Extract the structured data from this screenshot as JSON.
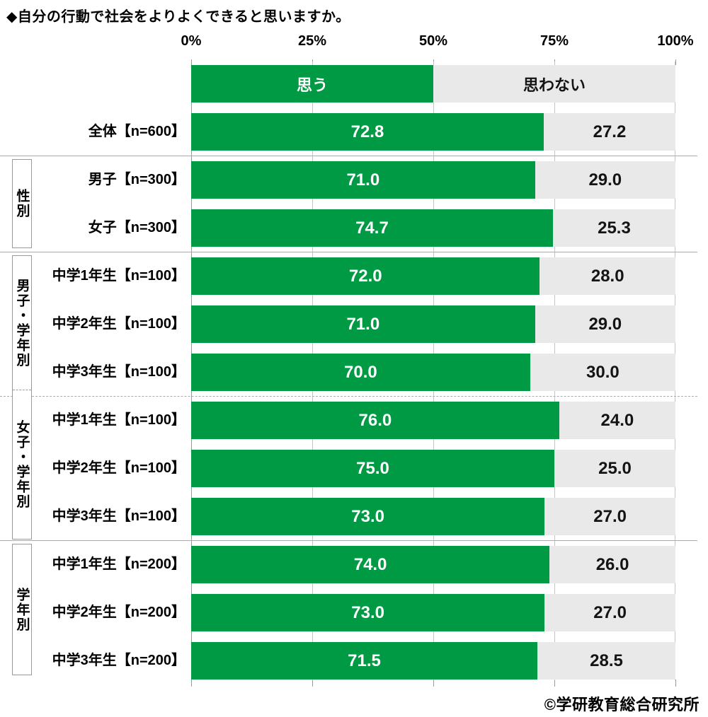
{
  "title": "◆自分の行動で社会をよりよくできると思いますか。",
  "axis_ticks": [
    "0%",
    "25%",
    "50%",
    "75%",
    "100%"
  ],
  "legend": {
    "yes": "思う",
    "no": "思わない"
  },
  "colors": {
    "yes_green": "#009944",
    "no_gray": "#E9E9E9"
  },
  "groups": {
    "gender": "性別",
    "boys_by_grade": "男子・学年別",
    "girls_by_grade": "女子・学年別",
    "by_grade": "学年別"
  },
  "rows": [
    {
      "label": "全体【n=600】",
      "yes": "72.8",
      "no": "27.2",
      "yes_w": 72.8,
      "no_w": 27.2
    },
    {
      "label": "男子【n=300】",
      "yes": "71.0",
      "no": "29.0",
      "yes_w": 71.0,
      "no_w": 29.0
    },
    {
      "label": "女子【n=300】",
      "yes": "74.7",
      "no": "25.3",
      "yes_w": 74.7,
      "no_w": 25.3
    },
    {
      "label": "中学1年生【n=100】",
      "yes": "72.0",
      "no": "28.0",
      "yes_w": 72.0,
      "no_w": 28.0
    },
    {
      "label": "中学2年生【n=100】",
      "yes": "71.0",
      "no": "29.0",
      "yes_w": 71.0,
      "no_w": 29.0
    },
    {
      "label": "中学3年生【n=100】",
      "yes": "70.0",
      "no": "30.0",
      "yes_w": 70.0,
      "no_w": 30.0
    },
    {
      "label": "中学1年生【n=100】",
      "yes": "76.0",
      "no": "24.0",
      "yes_w": 76.0,
      "no_w": 24.0
    },
    {
      "label": "中学2年生【n=100】",
      "yes": "75.0",
      "no": "25.0",
      "yes_w": 75.0,
      "no_w": 25.0
    },
    {
      "label": "中学3年生【n=100】",
      "yes": "73.0",
      "no": "27.0",
      "yes_w": 73.0,
      "no_w": 27.0
    },
    {
      "label": "中学1年生【n=200】",
      "yes": "74.0",
      "no": "26.0",
      "yes_w": 74.0,
      "no_w": 26.0
    },
    {
      "label": "中学2年生【n=200】",
      "yes": "73.0",
      "no": "27.0",
      "yes_w": 73.0,
      "no_w": 27.0
    },
    {
      "label": "中学3年生【n=200】",
      "yes": "71.5",
      "no": "28.5",
      "yes_w": 71.5,
      "no_w": 28.5
    }
  ],
  "footer": "©学研教育総合研究所",
  "chart_data": {
    "type": "bar",
    "orientation": "horizontal",
    "stacked": true,
    "title": "自分の行動で社会をよりよくできると思いますか。",
    "categories": [
      "全体【n=600】",
      "男子【n=300】",
      "女子【n=300】",
      "中学1年生【n=100】",
      "中学2年生【n=100】",
      "中学3年生【n=100】",
      "中学1年生【n=100】",
      "中学2年生【n=100】",
      "中学3年生【n=100】",
      "中学1年生【n=200】",
      "中学2年生【n=200】",
      "中学3年生【n=200】"
    ],
    "category_groups": [
      {
        "label": "",
        "rows": [
          0
        ]
      },
      {
        "label": "性別",
        "rows": [
          1,
          2
        ]
      },
      {
        "label": "男子・学年別",
        "rows": [
          3,
          4,
          5
        ]
      },
      {
        "label": "女子・学年別",
        "rows": [
          6,
          7,
          8
        ]
      },
      {
        "label": "学年別",
        "rows": [
          9,
          10,
          11
        ]
      }
    ],
    "series": [
      {
        "name": "思う",
        "color": "#009944",
        "values": [
          72.8,
          71.0,
          74.7,
          72.0,
          71.0,
          70.0,
          76.0,
          75.0,
          73.0,
          74.0,
          73.0,
          71.5
        ]
      },
      {
        "name": "思わない",
        "color": "#E9E9E9",
        "values": [
          27.2,
          29.0,
          25.3,
          28.0,
          29.0,
          30.0,
          24.0,
          25.0,
          27.0,
          26.0,
          27.0,
          28.5
        ]
      }
    ],
    "xlim": [
      0,
      100
    ],
    "x_tick_labels": [
      "0%",
      "25%",
      "50%",
      "75%",
      "100%"
    ],
    "grid": true,
    "legend_position": "top",
    "value_labels": "inside"
  }
}
